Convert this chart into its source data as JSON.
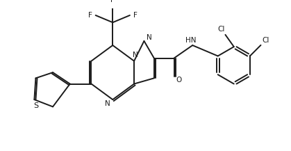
{
  "bg_color": "#ffffff",
  "line_color": "#1a1a1a",
  "bond_lw": 1.4,
  "figsize": [
    4.19,
    2.17
  ],
  "dpi": 100,
  "xlim": [
    0,
    10
  ],
  "ylim": [
    0,
    5
  ]
}
